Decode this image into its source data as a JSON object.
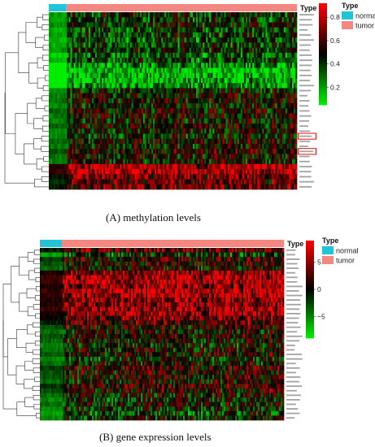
{
  "chart_data": [
    {
      "type": "heatmap",
      "panel_caption": "(A) methylation levels",
      "column_annotation": {
        "title": "Type",
        "groups": [
          {
            "name": "normal",
            "color": "#22c4d8",
            "fraction": 0.07
          },
          {
            "name": "tumor",
            "color": "#f4877f",
            "fraction": 0.93
          }
        ]
      },
      "colorbar": {
        "ticks": [
          0.2,
          0.4,
          0.6,
          0.8
        ],
        "range": [
          0.05,
          0.92
        ],
        "colors": {
          "low": "#00ee00",
          "mid": "#000000",
          "high": "#ff0000"
        }
      },
      "row_count": 35,
      "row_levels": [
        0.42,
        0.4,
        0.45,
        0.38,
        0.41,
        0.36,
        0.39,
        0.43,
        0.34,
        0.37,
        0.22,
        0.15,
        0.14,
        0.18,
        0.25,
        0.44,
        0.48,
        0.5,
        0.46,
        0.52,
        0.49,
        0.47,
        0.53,
        0.45,
        0.44,
        0.51,
        0.48,
        0.55,
        0.5,
        0.47,
        0.78,
        0.8,
        0.68,
        0.62,
        0.65
      ],
      "normal_offset": -0.22,
      "highlighted_rows": [
        24,
        27
      ]
    },
    {
      "type": "heatmap",
      "panel_caption": "(B) gene expression levels",
      "column_annotation": {
        "title": "Type",
        "groups": [
          {
            "name": "normal",
            "color": "#22c4d8",
            "fraction": 0.09
          },
          {
            "name": "tumor",
            "color": "#f4877f",
            "fraction": 0.91
          }
        ]
      },
      "colorbar": {
        "ticks": [
          5,
          0,
          -5
        ],
        "range": [
          -9,
          9
        ],
        "colors": {
          "low": "#00ee00",
          "mid": "#000000",
          "high": "#ff0000"
        }
      },
      "row_count": 38,
      "row_levels": [
        3,
        -2,
        2,
        1,
        0,
        5,
        6,
        6,
        5,
        6,
        6,
        5,
        5,
        6,
        5,
        4,
        3,
        1,
        0,
        1,
        0,
        -1,
        0,
        1,
        -1,
        0,
        2,
        1,
        1,
        0,
        2,
        1,
        0,
        -1,
        0,
        -1,
        -2,
        -1
      ],
      "normal_offset": -4
    }
  ]
}
